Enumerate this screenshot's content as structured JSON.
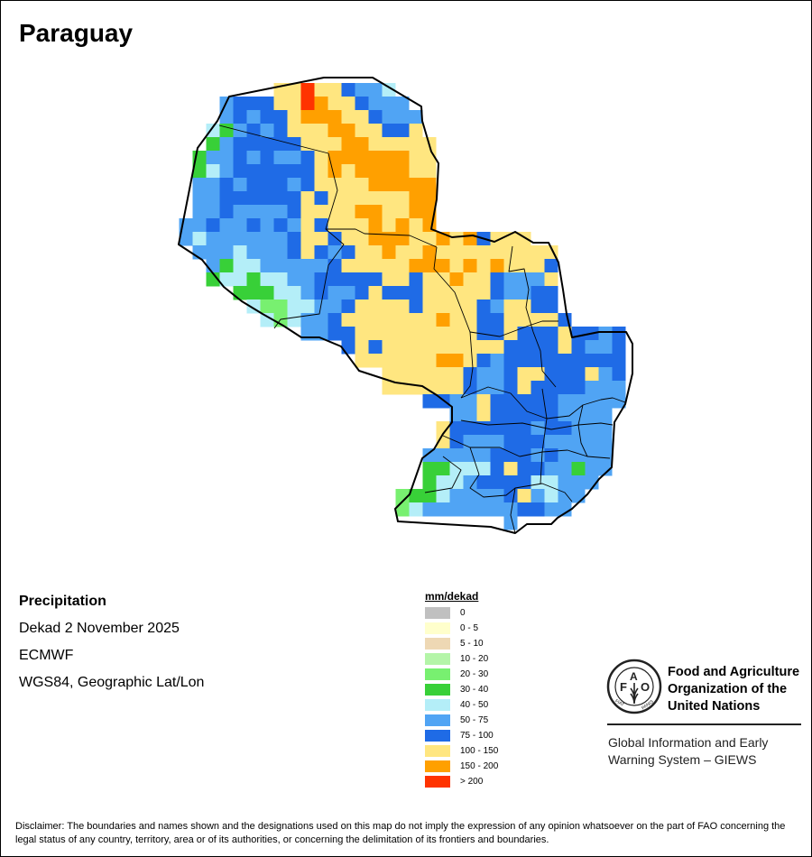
{
  "title": "Paraguay",
  "info": {
    "variable": "Precipitation",
    "period": "Dekad 2 November 2025",
    "source": "ECMWF",
    "projection": "WGS84, Geographic Lat/Lon"
  },
  "legend": {
    "title": "mm/dekad",
    "items": [
      {
        "label": "0",
        "color": "#c0c0c0"
      },
      {
        "label": "0 - 5",
        "color": "#ffffcc"
      },
      {
        "label": "5 - 10",
        "color": "#eed8b4"
      },
      {
        "label": "10 - 20",
        "color": "#b4f5a8"
      },
      {
        "label": "20 - 30",
        "color": "#78f070"
      },
      {
        "label": "30 - 40",
        "color": "#38d038"
      },
      {
        "label": "40 - 50",
        "color": "#b4eef8"
      },
      {
        "label": "50 - 75",
        "color": "#50a4f4"
      },
      {
        "label": "75 - 100",
        "color": "#1f6be6"
      },
      {
        "label": "100 - 150",
        "color": "#ffe680"
      },
      {
        "label": "150 - 200",
        "color": "#ffa000"
      },
      {
        "label": "> 200",
        "color": "#ff3300"
      }
    ]
  },
  "logo": {
    "seal_text": "FAO FIAT PANIS",
    "org_lines": [
      "Food and Agriculture",
      "Organization of the",
      "United Nations"
    ],
    "giews_lines": [
      "Global Information and Early",
      "Warning System – GIEWS"
    ]
  },
  "disclaimer": "Disclaimer: The boundaries and names shown and the designations used on this map do not imply the expression of any opinion whatsoever on the part of FAO concerning the legal status of any country, territory, area or of its authorities, or concerning the delimitation of its frontiers and boundaries."
}
